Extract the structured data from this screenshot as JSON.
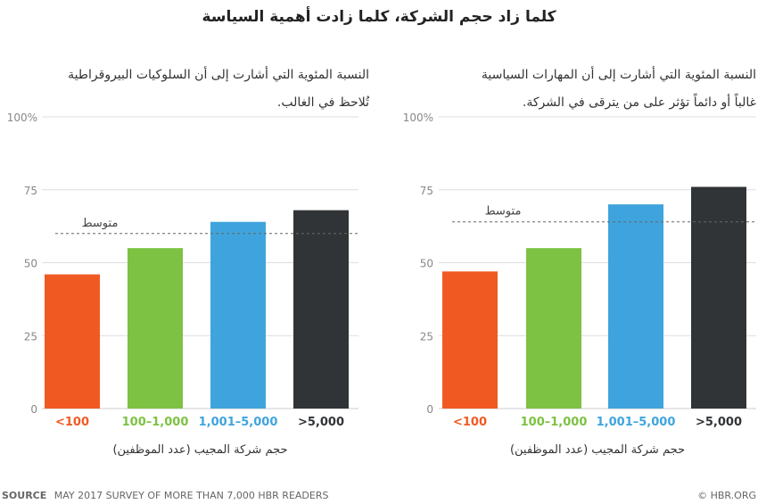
{
  "title": "كلما زاد حجم الشركة، كلما زادت أهمية السياسة",
  "source_label": "SOURCE",
  "source_text": "MAY 2017 SURVEY OF MORE THAN 7,000 HBR READERS",
  "copyright": "© HBR.ORG",
  "chart_data": [
    {
      "type": "bar",
      "title_lines": [
        "النسبة المئوية التي أشارت إلى أن السلوكيات البيروقراطية",
        "تُلاحظ في الغالب."
      ],
      "categories": [
        "<100",
        "100–1,000",
        "1,001–5,000",
        ">5,000"
      ],
      "colors": [
        "#f05a22",
        "#7dc242",
        "#3fa4dd",
        "#313437"
      ],
      "values": [
        46,
        55,
        64,
        68
      ],
      "average": 60,
      "average_label": "متوسط",
      "xlabel": "حجم شركة المجيب (عدد الموظفين)",
      "ylabel": "",
      "ylim": [
        0,
        100
      ],
      "yticks": [
        "0",
        "25",
        "50",
        "75",
        "100%"
      ],
      "grid": true
    },
    {
      "type": "bar",
      "title_lines": [
        "النسبة المئوية التي أشارت إلى أن المهارات السياسية",
        "غالباً أو دائماً تؤثر على من يترقى في الشركة."
      ],
      "categories": [
        "<100",
        "100–1,000",
        "1,001–5,000",
        ">5,000"
      ],
      "colors": [
        "#f05a22",
        "#7dc242",
        "#3fa4dd",
        "#313437"
      ],
      "values": [
        47,
        55,
        70,
        76
      ],
      "average": 64,
      "average_label": "متوسط",
      "xlabel": "حجم شركة المجيب (عدد الموظفين)",
      "ylabel": "",
      "ylim": [
        0,
        100
      ],
      "yticks": [
        "0",
        "25",
        "50",
        "75",
        "100%"
      ],
      "grid": true
    }
  ]
}
